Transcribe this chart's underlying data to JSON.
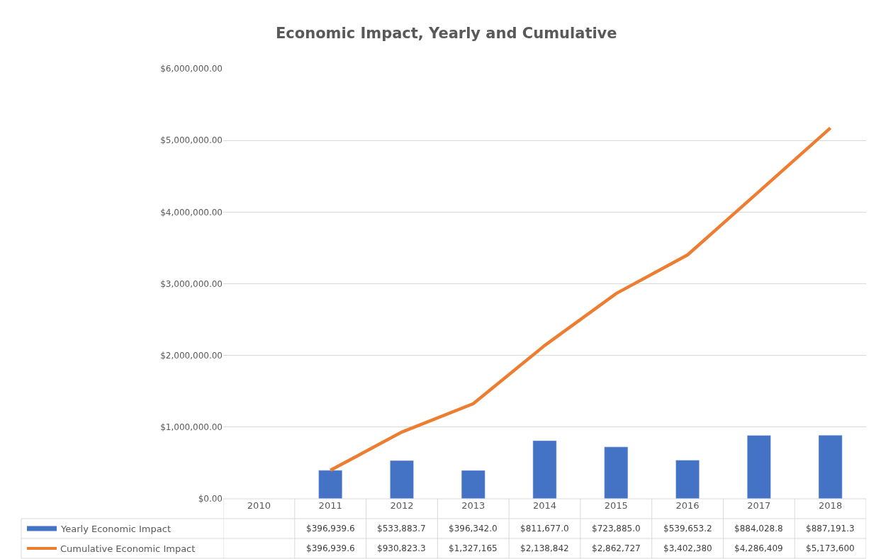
{
  "chart_data": {
    "type": "bar",
    "title": "Economic Impact, Yearly and Cumulative",
    "categories": [
      "2010",
      "2011",
      "2012",
      "2013",
      "2014",
      "2015",
      "2016",
      "2017",
      "2018"
    ],
    "series": [
      {
        "name": "Yearly Economic Impact",
        "color": "#4472c4",
        "values": [
          null,
          396939.6,
          533883.7,
          396342.0,
          811677.0,
          723885.0,
          539653.2,
          884028.8,
          887191.3
        ],
        "value_labels": [
          null,
          "$396,939.6",
          "$533,883.7",
          "$396,342.0",
          "$811,677.0",
          "$723,885.0",
          "$539,653.2",
          "$884,028.8",
          "$887,191.3"
        ]
      },
      {
        "name": "Cumulative Economic Impact",
        "type": "line",
        "color": "#ed7d31",
        "values": [
          null,
          396939.6,
          930823.3,
          1327165,
          2138842,
          2862727,
          3402380,
          4286409,
          5173600
        ],
        "value_labels": [
          null,
          "$396,939.6",
          "$930,823.3",
          "$1,327,165",
          "$2,138,842",
          "$2,862,727",
          "$3,402,380",
          "$4,286,409",
          "$5,173,600"
        ]
      }
    ],
    "ylim": [
      0,
      6000000
    ],
    "yticks": [
      {
        "value": 0,
        "label": "$0.00"
      },
      {
        "value": 1000000,
        "label": "$1,000,000.00"
      },
      {
        "value": 2000000,
        "label": "$2,000,000.00"
      },
      {
        "value": 3000000,
        "label": "$3,000,000.00"
      },
      {
        "value": 4000000,
        "label": "$4,000,000.00"
      },
      {
        "value": 5000000,
        "label": "$5,000,000.00"
      },
      {
        "value": 6000000,
        "label": "$6,000,000.00"
      }
    ],
    "grid": "y",
    "legend": "bottom",
    "line_style": "solid",
    "marker": "none"
  }
}
